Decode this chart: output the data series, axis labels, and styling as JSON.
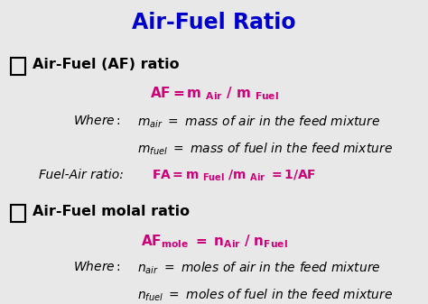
{
  "title": "Air-Fuel Ratio",
  "title_color": "#0000CC",
  "magenta": "#CC0077",
  "black": "#000000",
  "section1_header": "Air-Fuel (AF) ratio",
  "section2_header": "Air-Fuel molal ratio",
  "bg_color": "#E8E8E8"
}
